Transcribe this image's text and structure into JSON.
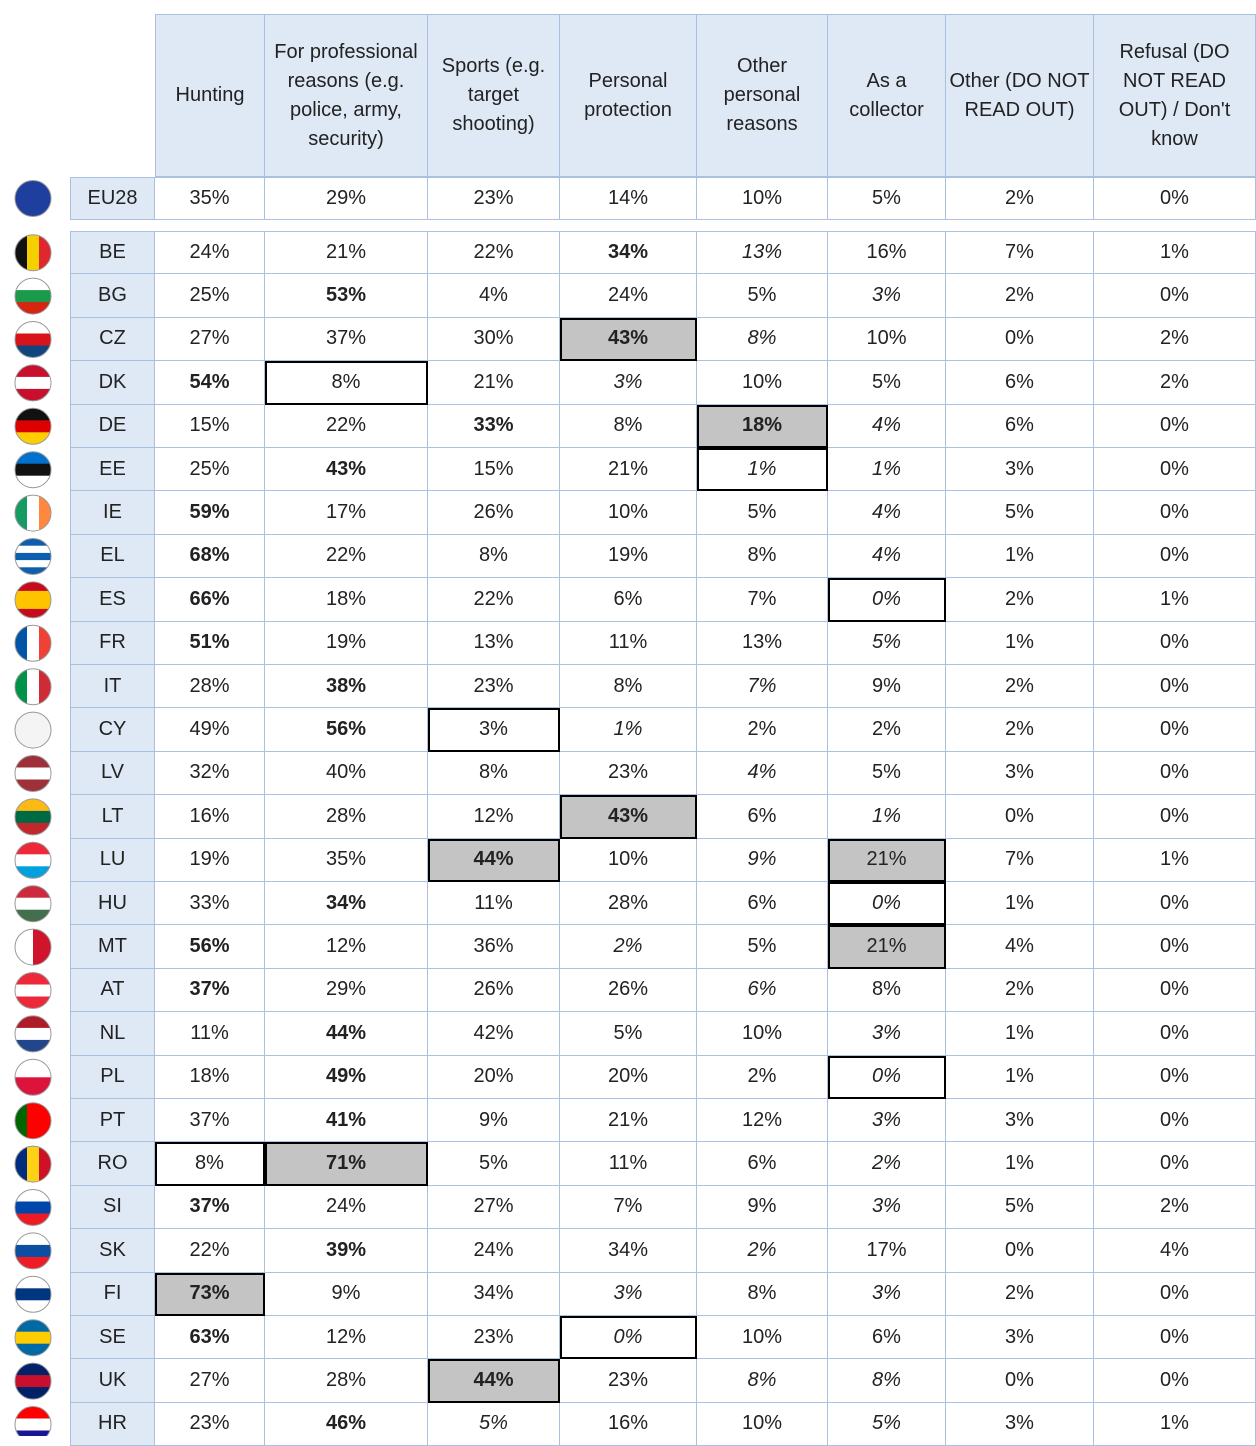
{
  "table": {
    "columns": [
      "Hunting",
      "For professional reasons (e.g. police, army, security)",
      "Sports (e.g. target shooting)",
      "Personal protection",
      "Other personal reasons",
      "As a collector",
      "Other (DO NOT READ OUT)",
      "Refusal (DO NOT READ OUT) / Don't know"
    ],
    "rows": [
      {
        "label": "EU28",
        "cells": [
          "35%",
          "29%",
          "23%",
          "14%",
          "10%",
          "5%",
          "2%",
          "0%"
        ]
      },
      {
        "label": "BE",
        "cells": [
          "24%",
          "21%",
          "22%",
          "34%",
          "13%",
          "16%",
          "7%",
          "1%"
        ]
      },
      {
        "label": "BG",
        "cells": [
          "25%",
          "53%",
          "4%",
          "24%",
          "5%",
          "3%",
          "2%",
          "0%"
        ]
      },
      {
        "label": "CZ",
        "cells": [
          "27%",
          "37%",
          "30%",
          "43%",
          "8%",
          "10%",
          "0%",
          "2%"
        ]
      },
      {
        "label": "DK",
        "cells": [
          "54%",
          "8%",
          "21%",
          "3%",
          "10%",
          "5%",
          "6%",
          "2%"
        ]
      },
      {
        "label": "DE",
        "cells": [
          "15%",
          "22%",
          "33%",
          "8%",
          "18%",
          "4%",
          "6%",
          "0%"
        ]
      },
      {
        "label": "EE",
        "cells": [
          "25%",
          "43%",
          "15%",
          "21%",
          "1%",
          "1%",
          "3%",
          "0%"
        ]
      },
      {
        "label": "IE",
        "cells": [
          "59%",
          "17%",
          "26%",
          "10%",
          "5%",
          "4%",
          "5%",
          "0%"
        ]
      },
      {
        "label": "EL",
        "cells": [
          "68%",
          "22%",
          "8%",
          "19%",
          "8%",
          "4%",
          "1%",
          "0%"
        ]
      },
      {
        "label": "ES",
        "cells": [
          "66%",
          "18%",
          "22%",
          "6%",
          "7%",
          "0%",
          "2%",
          "1%"
        ]
      },
      {
        "label": "FR",
        "cells": [
          "51%",
          "19%",
          "13%",
          "11%",
          "13%",
          "5%",
          "1%",
          "0%"
        ]
      },
      {
        "label": "IT",
        "cells": [
          "28%",
          "38%",
          "23%",
          "8%",
          "7%",
          "9%",
          "2%",
          "0%"
        ]
      },
      {
        "label": "CY",
        "cells": [
          "49%",
          "56%",
          "3%",
          "1%",
          "2%",
          "2%",
          "2%",
          "0%"
        ]
      },
      {
        "label": "LV",
        "cells": [
          "32%",
          "40%",
          "8%",
          "23%",
          "4%",
          "5%",
          "3%",
          "0%"
        ]
      },
      {
        "label": "LT",
        "cells": [
          "16%",
          "28%",
          "12%",
          "43%",
          "6%",
          "1%",
          "0%",
          "0%"
        ]
      },
      {
        "label": "LU",
        "cells": [
          "19%",
          "35%",
          "44%",
          "10%",
          "9%",
          "21%",
          "7%",
          "1%"
        ]
      },
      {
        "label": "HU",
        "cells": [
          "33%",
          "34%",
          "11%",
          "28%",
          "6%",
          "0%",
          "1%",
          "0%"
        ]
      },
      {
        "label": "MT",
        "cells": [
          "56%",
          "12%",
          "36%",
          "2%",
          "5%",
          "21%",
          "4%",
          "0%"
        ]
      },
      {
        "label": "AT",
        "cells": [
          "37%",
          "29%",
          "26%",
          "26%",
          "6%",
          "8%",
          "2%",
          "0%"
        ]
      },
      {
        "label": "NL",
        "cells": [
          "11%",
          "44%",
          "42%",
          "5%",
          "10%",
          "3%",
          "1%",
          "0%"
        ]
      },
      {
        "label": "PL",
        "cells": [
          "18%",
          "49%",
          "20%",
          "20%",
          "2%",
          "0%",
          "1%",
          "0%"
        ]
      },
      {
        "label": "PT",
        "cells": [
          "37%",
          "41%",
          "9%",
          "21%",
          "12%",
          "3%",
          "3%",
          "0%"
        ]
      },
      {
        "label": "RO",
        "cells": [
          "8%",
          "71%",
          "5%",
          "11%",
          "6%",
          "2%",
          "1%",
          "0%"
        ]
      },
      {
        "label": "SI",
        "cells": [
          "37%",
          "24%",
          "27%",
          "7%",
          "9%",
          "3%",
          "5%",
          "2%"
        ]
      },
      {
        "label": "SK",
        "cells": [
          "22%",
          "39%",
          "24%",
          "34%",
          "2%",
          "17%",
          "0%",
          "4%"
        ]
      },
      {
        "label": "FI",
        "cells": [
          "73%",
          "9%",
          "34%",
          "3%",
          "8%",
          "3%",
          "2%",
          "0%"
        ]
      },
      {
        "label": "SE",
        "cells": [
          "63%",
          "12%",
          "23%",
          "0%",
          "10%",
          "6%",
          "3%",
          "0%"
        ]
      },
      {
        "label": "UK",
        "cells": [
          "27%",
          "28%",
          "44%",
          "23%",
          "8%",
          "8%",
          "0%",
          "0%"
        ]
      },
      {
        "label": "HR",
        "cells": [
          "23%",
          "46%",
          "5%",
          "16%",
          "10%",
          "5%",
          "3%",
          "1%"
        ]
      }
    ],
    "bold": [
      [
        1,
        3
      ],
      [
        2,
        1
      ],
      [
        3,
        3
      ],
      [
        4,
        0
      ],
      [
        5,
        2
      ],
      [
        5,
        4
      ],
      [
        6,
        1
      ],
      [
        7,
        0
      ],
      [
        8,
        0
      ],
      [
        9,
        0
      ],
      [
        10,
        0
      ],
      [
        11,
        1
      ],
      [
        12,
        1
      ],
      [
        14,
        3
      ],
      [
        15,
        2
      ],
      [
        16,
        1
      ],
      [
        17,
        0
      ],
      [
        18,
        0
      ],
      [
        19,
        1
      ],
      [
        20,
        1
      ],
      [
        21,
        1
      ],
      [
        22,
        1
      ],
      [
        23,
        0
      ],
      [
        24,
        1
      ],
      [
        25,
        0
      ],
      [
        26,
        0
      ],
      [
        27,
        2
      ],
      [
        28,
        1
      ]
    ],
    "italic": [
      [
        1,
        4
      ],
      [
        2,
        5
      ],
      [
        3,
        4
      ],
      [
        4,
        3
      ],
      [
        5,
        5
      ],
      [
        6,
        4
      ],
      [
        6,
        5
      ],
      [
        7,
        5
      ],
      [
        8,
        5
      ],
      [
        9,
        5
      ],
      [
        10,
        5
      ],
      [
        11,
        4
      ],
      [
        12,
        3
      ],
      [
        13,
        4
      ],
      [
        14,
        5
      ],
      [
        15,
        4
      ],
      [
        16,
        5
      ],
      [
        17,
        3
      ],
      [
        18,
        4
      ],
      [
        19,
        5
      ],
      [
        20,
        5
      ],
      [
        21,
        5
      ],
      [
        22,
        5
      ],
      [
        23,
        5
      ],
      [
        24,
        4
      ],
      [
        25,
        3
      ],
      [
        25,
        5
      ],
      [
        26,
        3
      ],
      [
        27,
        4
      ],
      [
        27,
        5
      ],
      [
        28,
        2
      ],
      [
        28,
        5
      ]
    ],
    "highest": [
      [
        3,
        3
      ],
      [
        5,
        4
      ],
      [
        14,
        3
      ],
      [
        15,
        2
      ],
      [
        15,
        5
      ],
      [
        17,
        5
      ],
      [
        22,
        1
      ],
      [
        25,
        0
      ],
      [
        27,
        2
      ]
    ],
    "lowest": [
      [
        4,
        1
      ],
      [
        6,
        4
      ],
      [
        9,
        5
      ],
      [
        12,
        2
      ],
      [
        16,
        5
      ],
      [
        20,
        5
      ],
      [
        22,
        0
      ],
      [
        26,
        3
      ]
    ]
  }
}
